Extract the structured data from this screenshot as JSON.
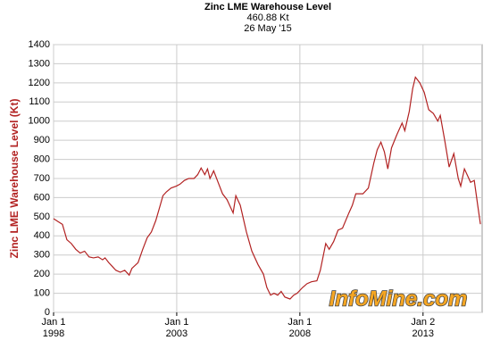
{
  "chart_data": {
    "type": "line",
    "title": "Zinc LME Warehouse Level",
    "subtitle": "460.88 Kt",
    "date": "26 May '15",
    "ylabel": "Zinc LME Warehouse Level (Kt)",
    "watermark": "InfoMine.com",
    "xlim": [
      1998,
      2015.4
    ],
    "xticks": [
      {
        "value": 1998,
        "label": "Jan 1\n1998"
      },
      {
        "value": 2003,
        "label": "Jan 1\n2003"
      },
      {
        "value": 2008,
        "label": "Jan 1\n2008"
      },
      {
        "value": 2013,
        "label": "Jan 2\n2013"
      }
    ],
    "ylim": [
      0,
      1400
    ],
    "yticks": [
      0,
      100,
      200,
      300,
      400,
      500,
      600,
      700,
      800,
      900,
      1000,
      1100,
      1200,
      1300,
      1400
    ],
    "grid": true,
    "series": [
      {
        "color": "#b22222",
        "x": [
          1998.0,
          1998.18,
          1998.36,
          1998.54,
          1998.72,
          1998.9,
          1999.08,
          1999.26,
          1999.44,
          1999.62,
          1999.81,
          1999.99,
          2000.09,
          2000.24,
          2000.53,
          2000.71,
          2000.89,
          2001.07,
          2001.18,
          2001.43,
          2001.62,
          2001.8,
          2001.97,
          2002.15,
          2002.33,
          2002.44,
          2002.58,
          2002.77,
          2002.98,
          2003.13,
          2003.31,
          2003.49,
          2003.7,
          2003.85,
          2003.99,
          2004.14,
          2004.25,
          2004.35,
          2004.5,
          2004.68,
          2004.86,
          2005.04,
          2005.29,
          2005.4,
          2005.58,
          2005.83,
          2006.05,
          2006.3,
          2006.52,
          2006.66,
          2006.81,
          2006.95,
          2007.1,
          2007.24,
          2007.39,
          2007.6,
          2007.75,
          2007.89,
          2008.11,
          2008.29,
          2008.47,
          2008.69,
          2008.83,
          2009.05,
          2009.19,
          2009.37,
          2009.55,
          2009.73,
          2009.99,
          2010.13,
          2010.27,
          2010.56,
          2010.78,
          2011.0,
          2011.14,
          2011.29,
          2011.43,
          2011.57,
          2011.72,
          2011.94,
          2012.15,
          2012.26,
          2012.44,
          2012.58,
          2012.69,
          2012.87,
          2013.05,
          2013.23,
          2013.42,
          2013.6,
          2013.7,
          2013.88,
          2014.06,
          2014.25,
          2014.43,
          2014.53,
          2014.68,
          2014.79,
          2014.93,
          2015.08,
          2015.22,
          2015.33
        ],
        "values": [
          490,
          475,
          460,
          380,
          360,
          330,
          310,
          320,
          290,
          285,
          290,
          275,
          285,
          260,
          220,
          210,
          220,
          195,
          230,
          260,
          330,
          390,
          420,
          480,
          560,
          610,
          630,
          650,
          660,
          670,
          690,
          700,
          700,
          720,
          755,
          720,
          750,
          700,
          740,
          680,
          620,
          590,
          520,
          610,
          560,
          420,
          320,
          250,
          200,
          130,
          90,
          100,
          90,
          110,
          80,
          70,
          90,
          100,
          130,
          150,
          160,
          165,
          220,
          360,
          330,
          370,
          430,
          440,
          520,
          560,
          620,
          620,
          650,
          780,
          850,
          890,
          840,
          750,
          860,
          930,
          990,
          950,
          1050,
          1170,
          1230,
          1200,
          1150,
          1060,
          1040,
          1000,
          1030,
          900,
          760,
          830,
          700,
          660,
          750,
          720,
          680,
          690,
          560,
          461
        ]
      }
    ]
  }
}
